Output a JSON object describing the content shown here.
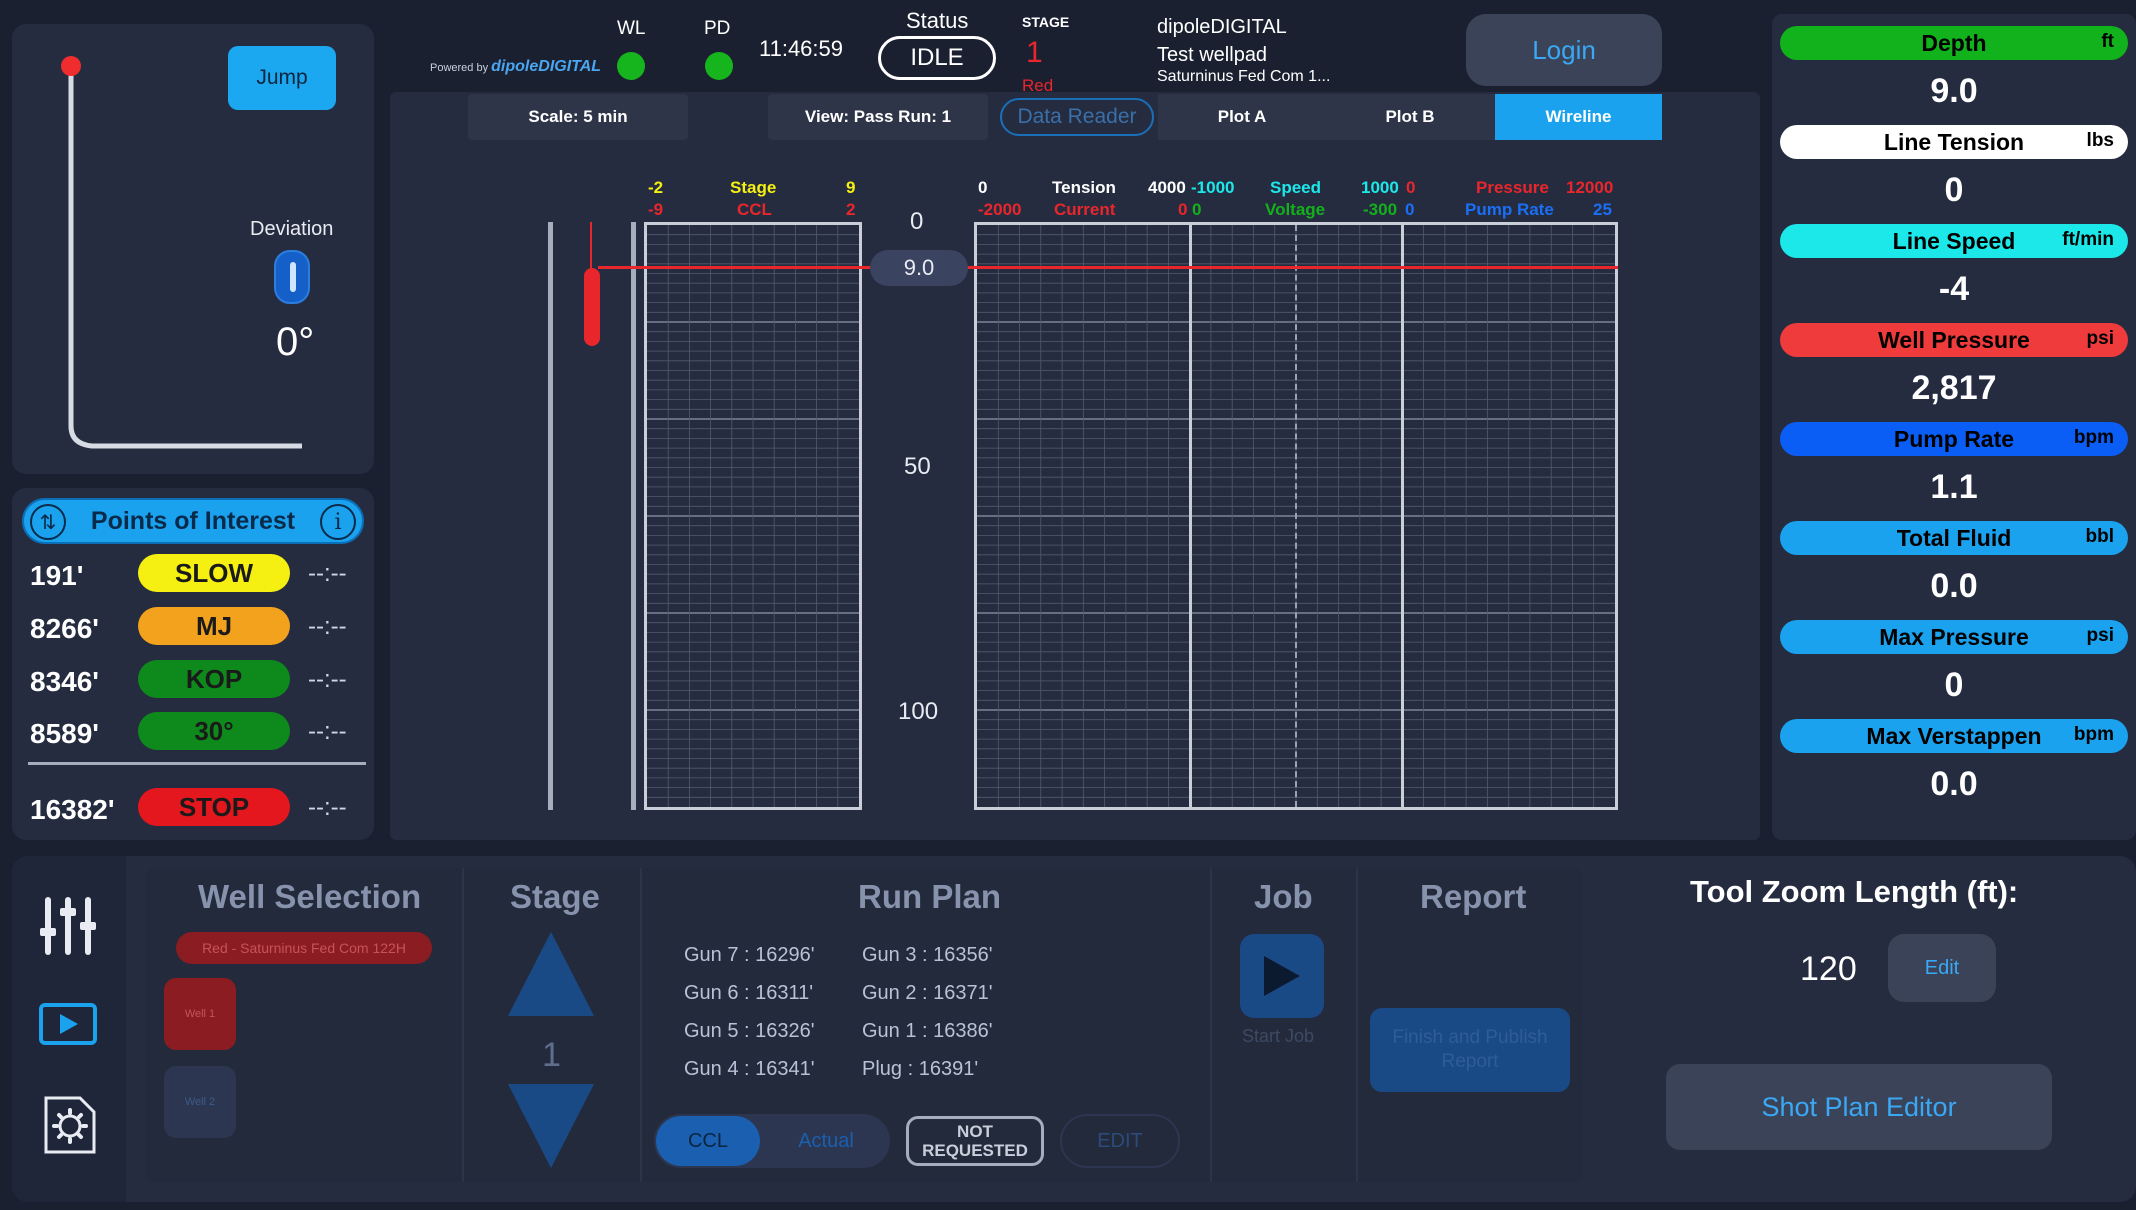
{
  "header": {
    "powered_by": "Powered by",
    "brand": "dipoleDIGITAL",
    "wl_label": "WL",
    "pd_label": "PD",
    "time": "11:46:59",
    "status_label": "Status",
    "status_value": "IDLE",
    "stage_label": "STAGE",
    "stage_value": "1",
    "stage_color_name": "Red",
    "company": "dipoleDIGITAL",
    "wellpad": "Test wellpad",
    "well": "Saturninus Fed Com 1...",
    "login": "Login"
  },
  "deviation": {
    "jump": "Jump",
    "label": "Deviation",
    "value": "0°"
  },
  "poi": {
    "title": "Points of Interest",
    "rows": [
      {
        "depth": "191'",
        "tag": "SLOW",
        "bg": "#f5ef12",
        "fg": "#1a1a1a",
        "time": "--:--"
      },
      {
        "depth": "8266'",
        "tag": "MJ",
        "bg": "#f2a21c",
        "fg": "#1a1a1a",
        "time": "--:--"
      },
      {
        "depth": "8346'",
        "tag": "KOP",
        "bg": "#0e8a1c",
        "fg": "#1a1a1a",
        "time": "--:--"
      },
      {
        "depth": "8589'",
        "tag": "30°",
        "bg": "#0e8a1c",
        "fg": "#1a1a1a",
        "time": "--:--"
      }
    ],
    "stop_row": {
      "depth": "16382'",
      "tag": "STOP",
      "bg": "#e4161e",
      "fg": "#1a1a1a",
      "time": "--:--"
    }
  },
  "plot": {
    "tabs": {
      "scale": "Scale: 5 min",
      "view": "View: Pass Run: 1",
      "data_reader": "Data Reader",
      "plot_a": "Plot A",
      "plot_b": "Plot B",
      "wireline": "Wireline"
    },
    "headers": {
      "stage_min": "-2",
      "stage_name": "Stage",
      "stage_max": "9",
      "ccl_min": "-9",
      "ccl_name": "CCL",
      "ccl_max": "2",
      "tension_min": "0",
      "tension_name": "Tension",
      "tension_max": "4000",
      "current_min": "-2000",
      "current_name": "Current",
      "current_max": "0",
      "speed_min": "-1000",
      "speed_name": "Speed",
      "speed_max": "1000",
      "voltage_min": "0",
      "voltage_name": "Voltage",
      "voltage_max": "-300",
      "pressure_min": "0",
      "pressure_name": "Pressure",
      "pressure_max": "12000",
      "pump_min": "0",
      "pump_name": "Pump Rate",
      "pump_max": "25"
    },
    "depth_ticks": [
      "0",
      "50",
      "100"
    ],
    "depth_marker": "9.0"
  },
  "gauges": [
    {
      "name": "Depth",
      "unit": "ft",
      "value": "9.0",
      "bg": "#12b21c",
      "fg": "#000000"
    },
    {
      "name": "Line Tension",
      "unit": "lbs",
      "value": "0",
      "bg": "#ffffff",
      "fg": "#000000"
    },
    {
      "name": "Line Speed",
      "unit": "ft/min",
      "value": "-4",
      "bg": "#1ce8ea",
      "fg": "#000000"
    },
    {
      "name": "Well Pressure",
      "unit": "psi",
      "value": "2,817",
      "bg": "#ef3b3b",
      "fg": "#000000"
    },
    {
      "name": "Pump Rate",
      "unit": "bpm",
      "value": "1.1",
      "bg": "#0b5ef5",
      "fg": "#000000"
    },
    {
      "name": "Total Fluid",
      "unit": "bbl",
      "value": "0.0",
      "bg": "#1aa2ef",
      "fg": "#000000"
    },
    {
      "name": "Max Pressure",
      "unit": "psi",
      "value": "0",
      "bg": "#1aa2ef",
      "fg": "#000000"
    },
    {
      "name": "Max Verstappen",
      "unit": "bpm",
      "value": "0.0",
      "bg": "#1aa2ef",
      "fg": "#000000"
    }
  ],
  "bottom": {
    "well_selection": "Well Selection",
    "well_chip": "Red - Saturninus Fed Com 122H",
    "well_btn_1": "Well 1",
    "well_btn_2": "Well 2",
    "stage_head": "Stage",
    "stage_num": "1",
    "run_plan": "Run Plan",
    "runplan_col1": [
      "Gun 7 : 16296'",
      "Gun 6 : 16311'",
      "Gun 5 : 16326'",
      "Gun 4 : 16341'"
    ],
    "runplan_col2": [
      "Gun 3 : 16356'",
      "Gun 2 : 16371'",
      "Gun 1 : 16386'",
      "Plug : 16391'"
    ],
    "ccl": "CCL",
    "actual": "Actual",
    "not_requested": "NOT REQUESTED",
    "edit": "EDIT",
    "job": "Job",
    "start_job": "Start Job",
    "report": "Report",
    "finish_report": "Finish and Publish Report",
    "tool_zoom": "Tool Zoom Length (ft):",
    "tool_zoom_value": "120",
    "tool_edit": "Edit",
    "shot_plan": "Shot Plan Editor"
  }
}
